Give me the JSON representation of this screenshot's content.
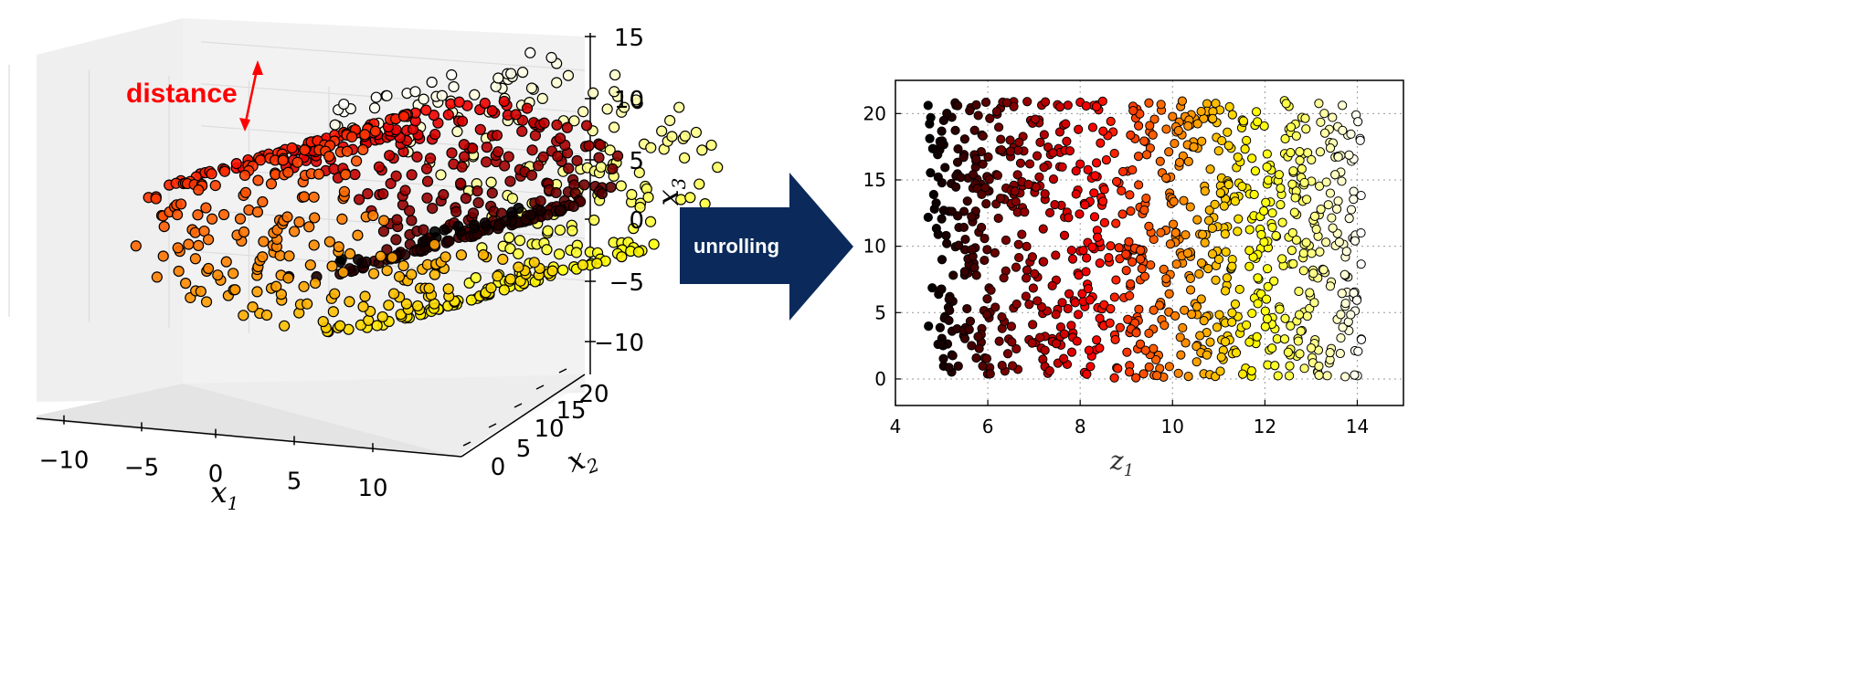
{
  "annotation": {
    "distance_label": "distance",
    "distance_color": "#ff0000"
  },
  "arrow": {
    "label": "unrolling",
    "color": "#0b2a5b",
    "text_color": "#ffffff"
  },
  "chart_data": [
    {
      "type": "scatter",
      "projection": "3d",
      "title": "",
      "xlabel": "x1",
      "ylabel": "x2",
      "zlabel": "x3",
      "xticks": [
        -10,
        -5,
        0,
        5,
        10
      ],
      "yticks": [
        0,
        5,
        10,
        15,
        20
      ],
      "zticks": [
        -10,
        -5,
        0,
        5,
        10,
        15
      ],
      "xlim": [
        -11,
        13
      ],
      "ylim": [
        0,
        21
      ],
      "zlim": [
        -12,
        15
      ],
      "grid": true,
      "colormap": "hot",
      "marker_edge_color": "#000000",
      "description_of_data": "swiss roll: points lie on a spiral sheet; x1 = t*cos(t), x3 = t*sin(t), x2 uniform in [0, 21], t in [4.7, 14.1]",
      "t_range": [
        4.7,
        14.1
      ],
      "point_count": 1000
    },
    {
      "type": "scatter",
      "title": "",
      "xlabel": "z1",
      "ylabel": "",
      "xticks": [
        4,
        6,
        8,
        10,
        12,
        14
      ],
      "yticks": [
        0,
        5,
        10,
        15,
        20
      ],
      "xlim": [
        4,
        15
      ],
      "ylim": [
        -2,
        22.5
      ],
      "grid": true,
      "grid_style": "dotted",
      "colormap": "hot",
      "marker_edge_color": "#000000",
      "point_count": 1000,
      "x_range": [
        4.7,
        14.1
      ],
      "y_range": [
        0,
        21
      ]
    }
  ]
}
